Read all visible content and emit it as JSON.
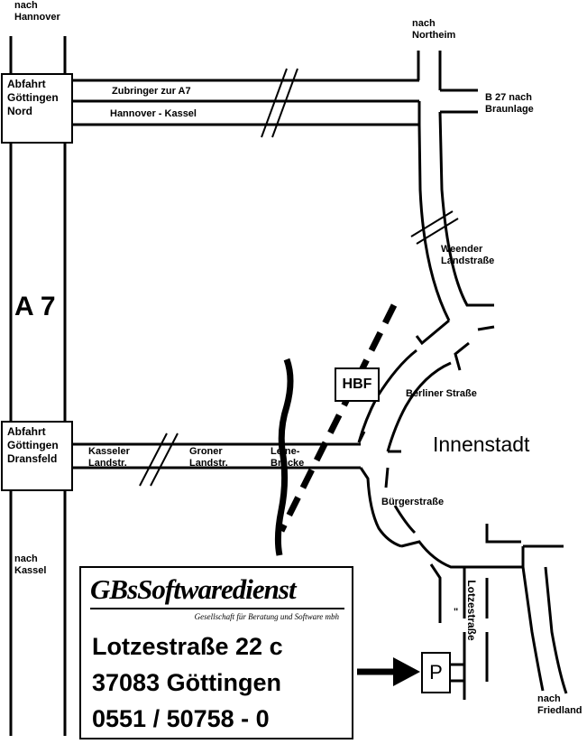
{
  "map": {
    "highway_label": "A 7",
    "district_label": "Innenstadt",
    "directions": {
      "hannover": "nach\nHannover",
      "northeim": "nach\nNortheim",
      "braunlage": "B 27 nach\nBraunlage",
      "kassel": "nach\nKassel",
      "friedland": "nach\nFriedland"
    },
    "exits": {
      "nord": "Abfahrt\nGöttingen\nNord",
      "dransfeld": "Abfahrt\nGöttingen\nDransfeld"
    },
    "streets": {
      "zubringer": "Zubringer zur A7",
      "hannover_kassel": "Hannover - Kassel",
      "weender": "Weender\nLandstraße",
      "berliner": "Berliner Straße",
      "kasseler": "Kasseler\nLandstr.",
      "groner": "Groner\nLandstr.",
      "leine": "Leine-\nBrücke",
      "buerger": "Bürgerstraße",
      "lotze": "Lotzestraße",
      "ditto": "\""
    },
    "station": "HBF",
    "parking": "P"
  },
  "company": {
    "logo": "GBsSoftwaredienst",
    "tagline": "Gesellschaft für Beratung und Software mbh",
    "street": "Lotzestraße 22 c",
    "city": "37083 Göttingen",
    "phone": "0551 / 50758 - 0"
  },
  "colors": {
    "ink": "#000000",
    "paper": "#ffffff"
  }
}
